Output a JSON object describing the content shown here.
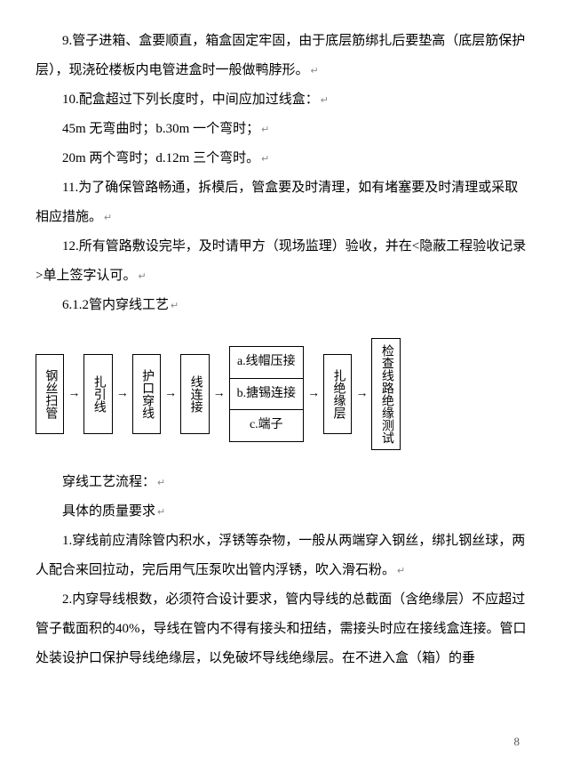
{
  "paragraphs": {
    "p1": "9.管子进箱、盒要顺直，箱盒固定牢固，由于底层筋绑扎后要垫高（底层筋保护层），现浇砼楼板内电管进盒时一般做鸭脖形。",
    "p2": "10.配盒超过下列长度时，中间应加过线盒：",
    "p3": "45m 无弯曲时；b.30m 一个弯时；",
    "p4": "20m 两个弯时；d.12m 三个弯时。",
    "p5": "11.为了确保管路畅通，拆模后，管盒要及时清理，如有堵塞要及时清理或采取相应措施。",
    "p6": "12.所有管路敷设完毕，及时请甲方（现场监理）验收，并在<隐蔽工程验收记录>单上签字认可。",
    "p7": "6.1.2管内穿线工艺",
    "p8": "穿线工艺流程：",
    "p9": "具体的质量要求",
    "p10": "1.穿线前应清除管内积水，浮锈等杂物，一般从两端穿入钢丝，绑扎钢丝球，两人配合来回拉动，完后用气压泵吹出管内浮锈，吹入滑石粉。",
    "p11": "2.内穿导线根数，必须符合设计要求，管内导线的总截面（含绝缘层）不应超过管子截面积的40%，导线在管内不得有接头和扭结，需接头时应在接线盒连接。管口处装设护口保护导线绝缘层，以免破坏导线绝缘层。在不进入盒（箱）的垂"
  },
  "flowchart": {
    "box1": "钢丝扫管",
    "box2": "扎引线",
    "box3": "护口穿线",
    "box4": "线连接",
    "group": {
      "a": "a.线帽压接",
      "b": "b.搪锡连接",
      "c": "c.端子"
    },
    "box5": "扎绝缘层",
    "box6": "检查线路绝缘测试",
    "arrow": "→"
  },
  "page_number": "8",
  "edit_mark": "↵"
}
